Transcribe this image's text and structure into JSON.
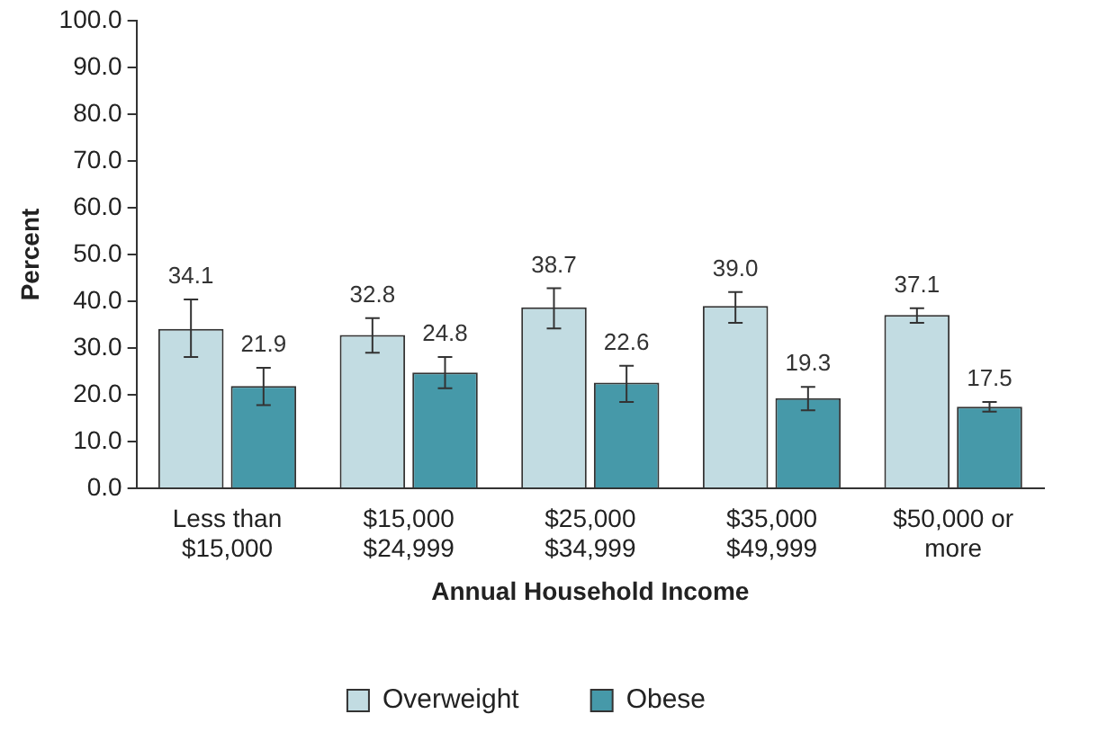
{
  "chart_data": {
    "type": "bar",
    "xlabel": "Annual Household Income",
    "ylabel": "Percent",
    "categories": [
      "Less than\n$15,000",
      "$15,000\n$24,999",
      "$25,000\n$34,999",
      "$35,000\n$49,999",
      "$50,000 or\nmore"
    ],
    "series": [
      {
        "name": "Overweight",
        "color": "#c2dce2",
        "values": [
          34.1,
          32.8,
          38.7,
          39.0,
          37.1
        ],
        "value_labels": [
          "34.1",
          "32.8",
          "38.7",
          "39.0",
          "37.1"
        ],
        "errors": [
          [
            28.1,
            40.4
          ],
          [
            29.0,
            36.4
          ],
          [
            34.2,
            42.8
          ],
          [
            35.4,
            42.0
          ],
          [
            35.4,
            38.5
          ]
        ]
      },
      {
        "name": "Obese",
        "color": "#4699a9",
        "values": [
          21.9,
          24.8,
          22.6,
          19.3,
          17.5
        ],
        "value_labels": [
          "21.9",
          "24.8",
          "22.6",
          "19.3",
          "17.5"
        ],
        "errors": [
          [
            17.8,
            25.8
          ],
          [
            21.4,
            28.1
          ],
          [
            18.5,
            26.2
          ],
          [
            16.7,
            21.7
          ],
          [
            16.4,
            18.5
          ]
        ]
      }
    ],
    "ylim": [
      0,
      100
    ],
    "yticks": [
      {
        "value": 0,
        "label": "0.0"
      },
      {
        "value": 10,
        "label": "10.0"
      },
      {
        "value": 20,
        "label": "20.0"
      },
      {
        "value": 30,
        "label": "30.0"
      },
      {
        "value": 40,
        "label": "40.0"
      },
      {
        "value": 50,
        "label": "50.0"
      },
      {
        "value": 60,
        "label": "60.0"
      },
      {
        "value": 70,
        "label": "70.0"
      },
      {
        "value": 80,
        "label": "80.0"
      },
      {
        "value": 90,
        "label": "90.0"
      },
      {
        "value": 100,
        "label": "100.0"
      }
    ],
    "grid": false,
    "legend": "bottom"
  }
}
